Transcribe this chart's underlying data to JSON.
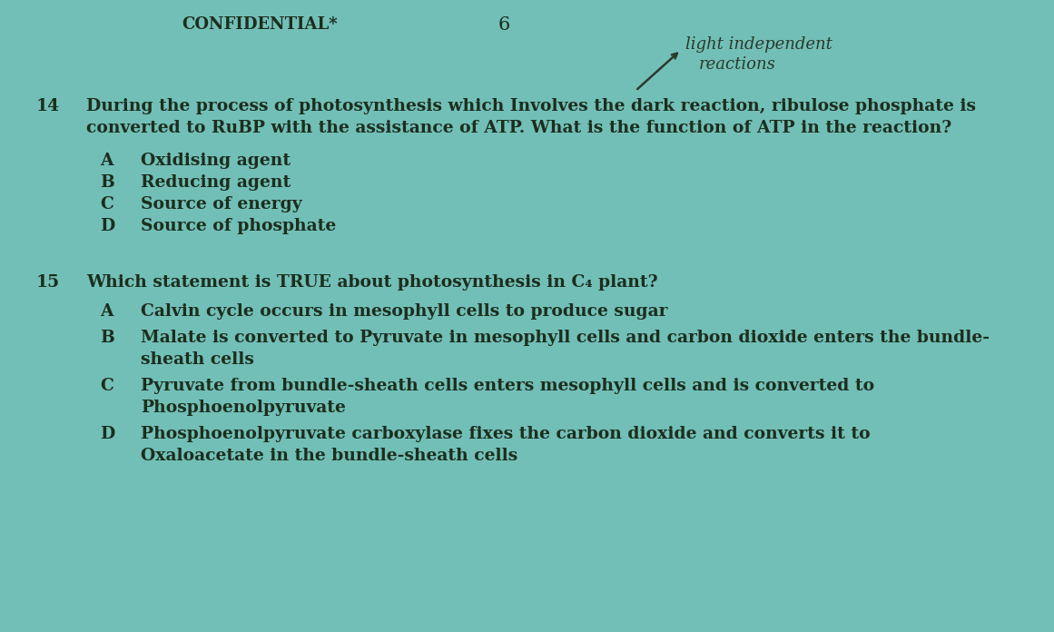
{
  "background_color": "#72bfb8",
  "page_number": "6",
  "confidential_text": "CONFIDENTIAL*",
  "q14_number": "14",
  "q14_text_line1": "During the⁠process of photosynthesis which Involves the dark reaction⁠, ribulose phosphate is",
  "q14_text_line1_plain": "During the process of photosynthesis which Involves the dark reaction, ribulose phosphate is",
  "q14_text_line2_plain": "converted to RuBP with the assistance of ATP. What is the function of ATP in the reaction?",
  "q14_options": [
    [
      "A",
      "Oxidising agent"
    ],
    [
      "B",
      "Reducing agent"
    ],
    [
      "C",
      "Source of energy"
    ],
    [
      "D",
      "Source of phosphate"
    ]
  ],
  "q15_number": "15",
  "q15_text": "Which statement is TRUE about photosynthesis in C₄ plant?",
  "q15_options": [
    [
      "A",
      "Calvin cycle occurs in mesophyll cells to produce sugar"
    ],
    [
      "B",
      "Malate is converted to Pyruvate in mesophyll cells and carbon dioxide enters the bundle-\nsheath cells"
    ],
    [
      "C",
      "Pyruvate from bundle-sheath cells enters mesophyll cells and is converted to\nPhosphoenolpyruvate"
    ],
    [
      "D",
      "Phosphoenolpyruvate carboxylase fixes the carbon dioxide and converts it to\nOxaloacetate in the bundle-sheath cells"
    ]
  ],
  "text_color": "#1c2e1c",
  "font_size_body": 13.5,
  "font_size_header": 13,
  "font_size_options": 13.5,
  "font_size_handwritten": 13
}
